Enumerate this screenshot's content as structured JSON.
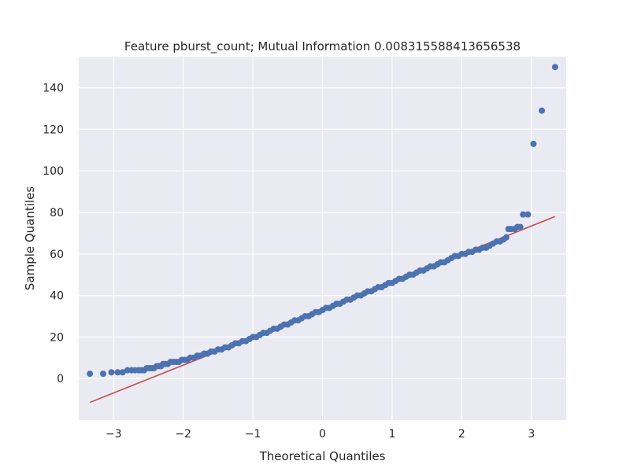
{
  "chart_data": {
    "type": "scatter",
    "title": "Feature pburst_count; Mutual Information 0.008315588413656538",
    "xlabel": "Theoretical Quantiles",
    "ylabel": "Sample Quantiles",
    "xlim": [
      -3.5,
      3.5
    ],
    "ylim": [
      -20,
      155
    ],
    "xticks": [
      -3,
      -2,
      -1,
      0,
      1,
      2,
      3
    ],
    "yticks": [
      0,
      20,
      40,
      60,
      80,
      100,
      120,
      140
    ],
    "xtick_labels": [
      "−3",
      "−2",
      "−1",
      "0",
      "1",
      "2",
      "3"
    ],
    "ytick_labels": [
      "0",
      "20",
      "40",
      "60",
      "80",
      "100",
      "120",
      "140"
    ],
    "grid": true,
    "colors": {
      "background": "#eaeaf2",
      "grid": "#ffffff",
      "points": "#4c72b0",
      "fit_line": "#c44e52"
    },
    "fit_line": {
      "x": [
        -3.34,
        3.34
      ],
      "y": [
        -11.5,
        78
      ]
    },
    "series": [
      {
        "points": [
          [
            -3.34,
            2.3
          ],
          [
            -3.15,
            2.3
          ],
          [
            -3.03,
            3
          ],
          [
            -2.94,
            3
          ],
          [
            -2.87,
            3
          ],
          [
            -2.8,
            4
          ],
          [
            -2.74,
            4
          ],
          [
            -2.69,
            4
          ],
          [
            -2.64,
            4
          ],
          [
            -2.6,
            4
          ],
          [
            -2.56,
            4
          ],
          [
            -2.52,
            5
          ],
          [
            -2.48,
            5
          ],
          [
            -2.45,
            5
          ],
          [
            -2.42,
            5
          ],
          [
            -2.38,
            6
          ],
          [
            -2.35,
            6
          ],
          [
            -2.32,
            6
          ],
          [
            -2.29,
            7
          ],
          [
            -2.26,
            7
          ],
          [
            -2.22,
            7
          ],
          [
            -2.18,
            8
          ],
          [
            -2.14,
            8
          ],
          [
            -2.1,
            8
          ],
          [
            -2.06,
            8
          ],
          [
            -2.02,
            9
          ],
          [
            -1.98,
            9
          ],
          [
            -1.94,
            9
          ],
          [
            -1.9,
            10
          ],
          [
            -1.85,
            10
          ],
          [
            -1.8,
            11
          ],
          [
            -1.75,
            11
          ],
          [
            -1.7,
            12
          ],
          [
            -1.65,
            12
          ],
          [
            -1.6,
            13
          ],
          [
            -1.55,
            13
          ],
          [
            -1.5,
            14
          ],
          [
            -1.45,
            14
          ],
          [
            -1.4,
            15
          ],
          [
            -1.35,
            15
          ],
          [
            -1.3,
            16
          ],
          [
            -1.25,
            17
          ],
          [
            -1.2,
            17
          ],
          [
            -1.15,
            18
          ],
          [
            -1.1,
            18
          ],
          [
            -1.05,
            19
          ],
          [
            -1.0,
            20
          ],
          [
            -0.95,
            20
          ],
          [
            -0.9,
            21
          ],
          [
            -0.85,
            22
          ],
          [
            -0.8,
            22
          ],
          [
            -0.75,
            23
          ],
          [
            -0.7,
            24
          ],
          [
            -0.65,
            24
          ],
          [
            -0.6,
            25
          ],
          [
            -0.55,
            26
          ],
          [
            -0.5,
            26
          ],
          [
            -0.45,
            27
          ],
          [
            -0.4,
            28
          ],
          [
            -0.35,
            28
          ],
          [
            -0.3,
            29
          ],
          [
            -0.25,
            30
          ],
          [
            -0.2,
            30
          ],
          [
            -0.15,
            31
          ],
          [
            -0.1,
            32
          ],
          [
            -0.05,
            32
          ],
          [
            0.0,
            33
          ],
          [
            0.05,
            34
          ],
          [
            0.1,
            34
          ],
          [
            0.15,
            35
          ],
          [
            0.2,
            36
          ],
          [
            0.25,
            36
          ],
          [
            0.3,
            37
          ],
          [
            0.35,
            38
          ],
          [
            0.4,
            38
          ],
          [
            0.45,
            39
          ],
          [
            0.5,
            40
          ],
          [
            0.55,
            40
          ],
          [
            0.6,
            41
          ],
          [
            0.65,
            42
          ],
          [
            0.7,
            42
          ],
          [
            0.75,
            43
          ],
          [
            0.8,
            44
          ],
          [
            0.85,
            44
          ],
          [
            0.9,
            45
          ],
          [
            0.95,
            46
          ],
          [
            1.0,
            46
          ],
          [
            1.05,
            47
          ],
          [
            1.1,
            48
          ],
          [
            1.15,
            48
          ],
          [
            1.2,
            49
          ],
          [
            1.25,
            50
          ],
          [
            1.3,
            50
          ],
          [
            1.35,
            51
          ],
          [
            1.4,
            52
          ],
          [
            1.45,
            52
          ],
          [
            1.5,
            53
          ],
          [
            1.55,
            54
          ],
          [
            1.6,
            54
          ],
          [
            1.65,
            55
          ],
          [
            1.7,
            56
          ],
          [
            1.75,
            56
          ],
          [
            1.8,
            57
          ],
          [
            1.85,
            58
          ],
          [
            1.9,
            59
          ],
          [
            1.95,
            59
          ],
          [
            2.0,
            60
          ],
          [
            2.05,
            60
          ],
          [
            2.1,
            61
          ],
          [
            2.15,
            61
          ],
          [
            2.2,
            62
          ],
          [
            2.25,
            62
          ],
          [
            2.3,
            63
          ],
          [
            2.35,
            63
          ],
          [
            2.4,
            64
          ],
          [
            2.45,
            65
          ],
          [
            2.5,
            66
          ],
          [
            2.55,
            66
          ],
          [
            2.6,
            67
          ],
          [
            2.64,
            68
          ],
          [
            2.67,
            72
          ],
          [
            2.71,
            72
          ],
          [
            2.76,
            72
          ],
          [
            2.8,
            73
          ],
          [
            2.84,
            73
          ],
          [
            2.88,
            79
          ],
          [
            2.95,
            79
          ],
          [
            3.03,
            113
          ],
          [
            3.15,
            129
          ],
          [
            3.34,
            150
          ]
        ]
      }
    ]
  }
}
